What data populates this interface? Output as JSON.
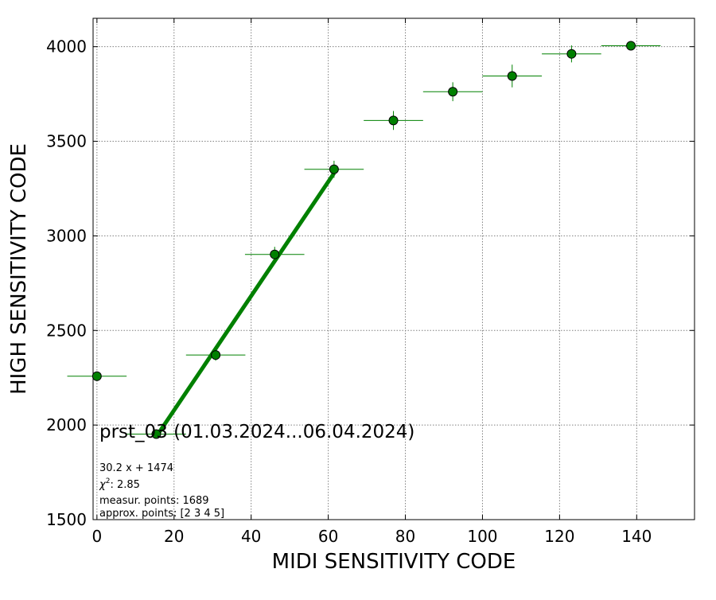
{
  "chart_data": {
    "type": "scatter",
    "xlabel": "MIDI SENSITIVITY CODE",
    "ylabel": "HIGH SENSITIVITY CODE",
    "xlim": [
      -1,
      155
    ],
    "ylim": [
      1500,
      4150
    ],
    "xticks": [
      0,
      20,
      40,
      60,
      80,
      100,
      120,
      140
    ],
    "yticks": [
      1500,
      2000,
      2500,
      3000,
      3500,
      4000
    ],
    "grid": true,
    "colors": {
      "marker": "#008000",
      "fit_line": "#008000",
      "errorbar": "#008000",
      "grid": "#808080"
    },
    "series": [
      {
        "points": [
          {
            "x": 0,
            "y": 2258,
            "xerr": 7.7,
            "yerr": 25
          },
          {
            "x": 15.4,
            "y": 1952,
            "xerr": 7.7,
            "yerr": 20
          },
          {
            "x": 30.8,
            "y": 2370,
            "xerr": 7.7,
            "yerr": 30
          },
          {
            "x": 46.1,
            "y": 2902,
            "xerr": 7.7,
            "yerr": 40
          },
          {
            "x": 61.5,
            "y": 3352,
            "xerr": 7.7,
            "yerr": 45
          },
          {
            "x": 76.9,
            "y": 3610,
            "xerr": 7.7,
            "yerr": 50
          },
          {
            "x": 92.3,
            "y": 3762,
            "xerr": 7.7,
            "yerr": 50
          },
          {
            "x": 107.7,
            "y": 3845,
            "xerr": 7.7,
            "yerr": 60
          },
          {
            "x": 123.1,
            "y": 3962,
            "xerr": 7.7,
            "yerr": 45
          },
          {
            "x": 138.5,
            "y": 4005,
            "xerr": 7.7,
            "yerr": 25
          }
        ]
      }
    ],
    "fit": {
      "slope": 30.2,
      "intercept": 1474,
      "x_range": [
        15.4,
        61.5
      ]
    },
    "annotations": {
      "title": "prst_03 (01.03.2024...06.04.2024)",
      "fit_equation": "30.2 x + 1474",
      "chi2_label": "χ",
      "chi2_sup": "2",
      "chi2_value": ": 2.85",
      "measur_points": "measur. points: 1689",
      "approx_points": "approx. points: [2 3 4 5]"
    }
  }
}
